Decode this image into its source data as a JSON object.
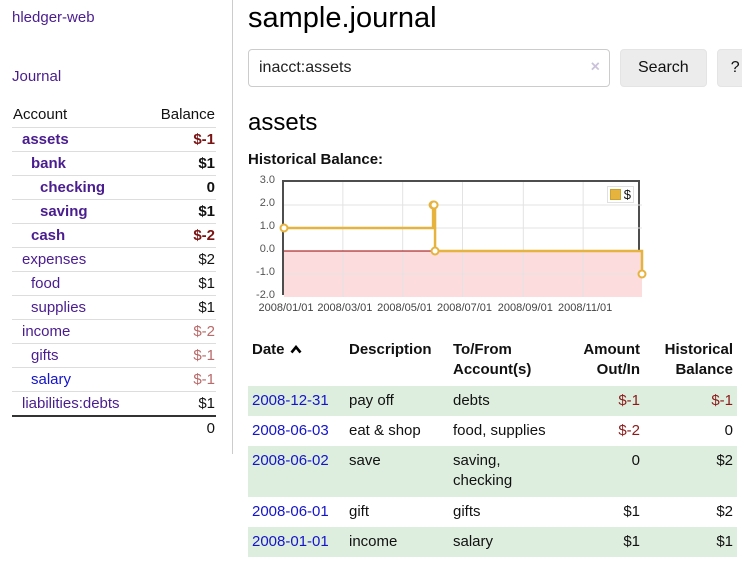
{
  "colors": {
    "link_visited": "#4a1d8f",
    "link_unvisited": "#1414cc",
    "negative_bold": "#7a1313",
    "negative_soft": "#b96a6a",
    "negative_table": "#8b1a1a",
    "row_stripe_green": "#deeede",
    "chart_line": "#e6b33e",
    "chart_negative_fill": "#fcdcdc",
    "chart_zero_line": "#990000",
    "chart_border": "#4d4d4d",
    "chart_grid": "#e3e3e3",
    "tick_text": "#545454"
  },
  "sidebar": {
    "app_title": "hledger-web",
    "nav": [
      {
        "label": "Journal"
      }
    ],
    "accounts_table": {
      "headers": [
        "Account",
        "Balance"
      ],
      "rows": [
        {
          "account": "assets",
          "depth": 1,
          "bold": true,
          "balance": "$-1",
          "negative": true,
          "visited": true
        },
        {
          "account": "bank",
          "depth": 2,
          "bold": true,
          "balance": "$1",
          "negative": false,
          "visited": true
        },
        {
          "account": "checking",
          "depth": 3,
          "bold": true,
          "balance": "0",
          "negative": false,
          "visited": true
        },
        {
          "account": "saving",
          "depth": 3,
          "bold": true,
          "balance": "$1",
          "negative": false,
          "visited": true
        },
        {
          "account": "cash",
          "depth": 2,
          "bold": true,
          "balance": "$-2",
          "negative": true,
          "visited": true
        },
        {
          "account": "expenses",
          "depth": 1,
          "bold": false,
          "balance": "$2",
          "negative": false,
          "visited": true
        },
        {
          "account": "food",
          "depth": 2,
          "bold": false,
          "balance": "$1",
          "negative": false,
          "visited": true
        },
        {
          "account": "supplies",
          "depth": 2,
          "bold": false,
          "balance": "$1",
          "negative": false,
          "visited": true
        },
        {
          "account": "income",
          "depth": 1,
          "bold": false,
          "balance": "$-2",
          "negative": true,
          "visited": true
        },
        {
          "account": "gifts",
          "depth": 2,
          "bold": false,
          "balance": "$-1",
          "negative": true,
          "visited": true
        },
        {
          "account": "salary",
          "depth": 2,
          "bold": false,
          "balance": "$-1",
          "negative": true,
          "visited": false
        },
        {
          "account": "liabilities:debts",
          "depth": 1,
          "bold": false,
          "balance": "$1",
          "negative": false,
          "visited": true
        }
      ],
      "total": "0"
    }
  },
  "header": {
    "title": "sample.journal"
  },
  "search": {
    "value": "inacct:assets",
    "clear_icon": "×",
    "button_label": "Search",
    "help_label": "?"
  },
  "account_page": {
    "title": "assets",
    "chart_label": "Historical Balance:"
  },
  "chart_data": {
    "type": "line",
    "step": true,
    "title": "Historical Balance",
    "series": [
      {
        "name": "$",
        "points": [
          [
            "2008/01/01",
            1
          ],
          [
            "2008/06/01",
            2
          ],
          [
            "2008/06/02",
            2
          ],
          [
            "2008/06/03",
            0
          ],
          [
            "2008/12/31",
            -1
          ]
        ]
      }
    ],
    "x_ticks": [
      "2008/01/01",
      "2008/03/01",
      "2008/05/01",
      "2008/07/01",
      "2008/09/01",
      "2008/11/01"
    ],
    "y_ticks": [
      3.0,
      2.0,
      1.0,
      0.0,
      -1.0,
      -2.0
    ],
    "xlim": [
      "2008/01/01",
      "2008/12/31"
    ],
    "ylim": [
      -2,
      3
    ],
    "grid": true,
    "legend_position": "top-right",
    "negative_region_shaded": true
  },
  "transactions": {
    "headers": [
      {
        "label": "Date",
        "sorted": "ascending"
      },
      {
        "label": "Description"
      },
      {
        "label": "To/From Account(s)"
      },
      {
        "label": "Amount Out/In"
      },
      {
        "label": "Historical Balance"
      }
    ],
    "rows": [
      {
        "date": "2008-12-31",
        "description": "pay off",
        "accounts": "debts",
        "amount": "$-1",
        "amount_negative": true,
        "balance": "$-1",
        "balance_negative": true
      },
      {
        "date": "2008-06-03",
        "description": "eat & shop",
        "accounts": "food, supplies",
        "amount": "$-2",
        "amount_negative": true,
        "balance": "0",
        "balance_negative": false
      },
      {
        "date": "2008-06-02",
        "description": "save",
        "accounts": "saving, checking",
        "amount": "0",
        "amount_negative": false,
        "balance": "$2",
        "balance_negative": false
      },
      {
        "date": "2008-06-01",
        "description": "gift",
        "accounts": "gifts",
        "amount": "$1",
        "amount_negative": false,
        "balance": "$2",
        "balance_negative": false
      },
      {
        "date": "2008-01-01",
        "description": "income",
        "accounts": "salary",
        "amount": "$1",
        "amount_negative": false,
        "balance": "$1",
        "balance_negative": false
      }
    ]
  }
}
